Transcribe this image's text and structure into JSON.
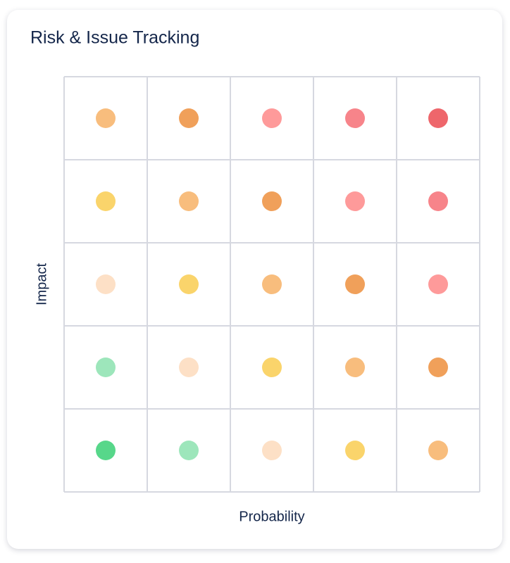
{
  "card": {
    "title": "Risk & Issue Tracking",
    "x_label": "Probability",
    "y_label": "Impact",
    "grid_line_color": "#d6d8e0",
    "cells": [
      [
        "#f8bd7d",
        "#f0a05a",
        "#fe9a9a",
        "#f7848a",
        "#ee666b"
      ],
      [
        "#fad46b",
        "#f8bd7d",
        "#f0a05a",
        "#fe9a9a",
        "#f7848a"
      ],
      [
        "#fde0c6",
        "#fad46b",
        "#f8bd7d",
        "#f0a05a",
        "#fe9a9a"
      ],
      [
        "#9de6bb",
        "#fde0c6",
        "#fad46b",
        "#f8bd7d",
        "#f0a05a"
      ],
      [
        "#57d78a",
        "#9de6bb",
        "#fde0c6",
        "#fad46b",
        "#f8bd7d"
      ]
    ]
  }
}
